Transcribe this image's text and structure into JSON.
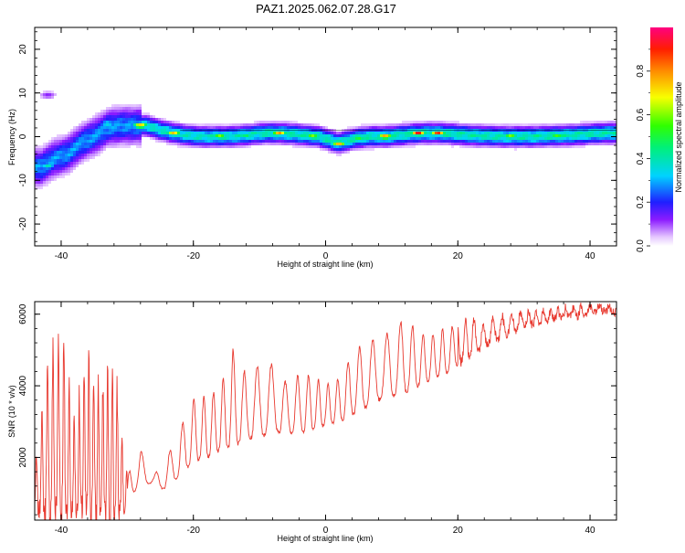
{
  "title": "PAZ1.2025.062.07.28.G17",
  "chart_data": [
    {
      "type": "heatmap",
      "xlabel": "Height of straight line (km)",
      "ylabel": "Frequency (Hz)",
      "xlim": [
        -44,
        44
      ],
      "ylim": [
        -25,
        25
      ],
      "xticks": [
        -40,
        -20,
        0,
        20,
        40
      ],
      "yticks": [
        -20,
        -10,
        0,
        10,
        20
      ],
      "colorbar": {
        "label": "Normalized spectral amplitude",
        "range": [
          0,
          1
        ],
        "ticks": [
          0.0,
          0.2,
          0.4,
          0.6,
          0.8
        ],
        "tick_labels": [
          "0.0",
          "0.2",
          "0.4",
          "0.6",
          "0.8"
        ]
      },
      "ridge": {
        "x": [
          -43,
          -41,
          -39,
          -37,
          -35,
          -33,
          -31,
          -29,
          -27,
          -25,
          -23,
          -21,
          -19,
          -17,
          -15,
          -13,
          -11,
          -9,
          -7,
          -5,
          -3,
          -1,
          1,
          2,
          3,
          5,
          7,
          9,
          11,
          13,
          15,
          17,
          19,
          21,
          23,
          25,
          27,
          29,
          31,
          33,
          35,
          37,
          39,
          41,
          43
        ],
        "y": [
          -7,
          -5,
          -4,
          -1.5,
          0,
          2,
          2.5,
          2.5,
          2.5,
          1.5,
          0.8,
          0.3,
          0,
          0,
          0,
          0.2,
          0.5,
          0.8,
          0.8,
          0.6,
          0.3,
          0,
          -1,
          -1.5,
          -1,
          -0.3,
          0,
          0,
          0.3,
          0.6,
          0.8,
          0.8,
          0.6,
          0.4,
          0.2,
          0.1,
          0,
          0,
          0,
          0.1,
          0.2,
          0.3,
          0.5,
          0.7,
          0.8
        ]
      },
      "peaks": [
        {
          "x": -28,
          "y": 2.5,
          "amp": 0.85
        },
        {
          "x": -23,
          "y": 0.8,
          "amp": 0.75
        },
        {
          "x": -16,
          "y": 0,
          "amp": 0.7
        },
        {
          "x": -12,
          "y": 0,
          "amp": 0.55
        },
        {
          "x": -7,
          "y": 0.8,
          "amp": 0.8
        },
        {
          "x": -2,
          "y": 0,
          "amp": 0.7
        },
        {
          "x": 2,
          "y": -1.5,
          "amp": 0.85
        },
        {
          "x": 5,
          "y": -0.3,
          "amp": 0.55
        },
        {
          "x": 9,
          "y": 0,
          "amp": 0.9
        },
        {
          "x": 14,
          "y": 0.8,
          "amp": 0.95
        },
        {
          "x": 17,
          "y": 0.8,
          "amp": 0.9
        },
        {
          "x": 28,
          "y": 0,
          "amp": 0.7
        },
        {
          "x": 35,
          "y": 0,
          "amp": 0.65
        },
        {
          "x": -42,
          "y": -6.5,
          "amp": 0.45
        },
        {
          "x": -33,
          "y": 3,
          "amp": 0.45
        }
      ]
    },
    {
      "type": "line",
      "xlabel": "Height of straight line (km)",
      "ylabel": "SNR (10 * v/v)",
      "xlim": [
        -44,
        44
      ],
      "ylim": [
        250,
        6350
      ],
      "xticks": [
        -40,
        -20,
        0,
        20,
        40
      ],
      "yticks": [
        2000,
        4000,
        6000
      ],
      "color": "#e8392f",
      "envelope": {
        "x": [
          -44,
          -42,
          -40,
          -38,
          -36,
          -34,
          -32,
          -30,
          -28,
          -26,
          -24,
          -22,
          -20,
          -18,
          -16,
          -14,
          -12,
          -10,
          -8,
          -6,
          -4,
          -2,
          0,
          2,
          4,
          6,
          8,
          10,
          12,
          14,
          16,
          18,
          20,
          22,
          24,
          26,
          28,
          30,
          32,
          34,
          36,
          38,
          40,
          42,
          44
        ],
        "base": [
          500,
          500,
          500,
          500,
          500,
          500,
          500,
          600,
          1400,
          1200,
          1100,
          1500,
          1900,
          2000,
          2200,
          2300,
          2500,
          2600,
          2700,
          2700,
          2700,
          2800,
          2900,
          3000,
          3200,
          3400,
          3600,
          3700,
          3800,
          4000,
          4200,
          4300,
          4600,
          4900,
          5100,
          5300,
          5500,
          5650,
          5750,
          5850,
          5900,
          5950,
          6000,
          6050,
          6050
        ],
        "peak": [
          1600,
          4500,
          5600,
          3000,
          4700,
          4000,
          4700,
          1500,
          2200,
          1500,
          2000,
          2800,
          3600,
          3700,
          3900,
          5000,
          4300,
          4600,
          4600,
          4100,
          4300,
          4300,
          4000,
          4200,
          4900,
          5200,
          5400,
          5500,
          5900,
          5500,
          5400,
          5600,
          5700,
          5900,
          5700,
          5900,
          5950,
          6050,
          6100,
          6100,
          6150,
          6200,
          6250,
          6250,
          6200
        ]
      }
    }
  ]
}
